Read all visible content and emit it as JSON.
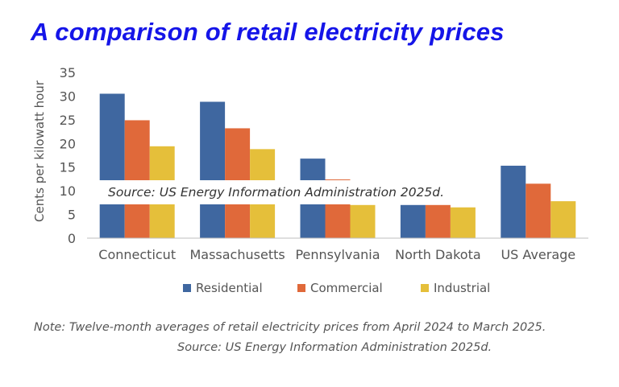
{
  "title": "A comparison of retail electricity prices",
  "note": "Note: Twelve-month averages of retail electricity prices from April 2024 to March 2025.",
  "footer_source": "Source: US Energy Information Administration 2025d.",
  "overlay_source": "Source: US Energy Information Administration 2025d.",
  "colors": {
    "title": "#1515e8",
    "residential": "#3f67a0",
    "commercial": "#e0693a",
    "industrial": "#e5bf3a",
    "axis": "#bfbfbf"
  },
  "chart_data": {
    "type": "bar",
    "title": "A comparison of retail electricity prices",
    "xlabel": "",
    "ylabel": "Cents per kilowatt hour",
    "ylim": [
      0,
      35
    ],
    "yticks": [
      0,
      5,
      10,
      15,
      20,
      25,
      30,
      35
    ],
    "grid": false,
    "legend_position": "bottom",
    "categories": [
      "Connecticut",
      "Massachusetts",
      "Pennsylvania",
      "North Dakota",
      "US Average"
    ],
    "series": [
      {
        "name": "Residential",
        "color": "#3f67a0",
        "values": [
          30.5,
          28.8,
          16.8,
          7.0,
          15.3
        ]
      },
      {
        "name": "Commercial",
        "color": "#e0693a",
        "values": [
          24.9,
          23.2,
          12.4,
          7.0,
          11.5
        ]
      },
      {
        "name": "Industrial",
        "color": "#e5bf3a",
        "values": [
          19.4,
          18.8,
          7.0,
          6.5,
          7.8
        ]
      }
    ]
  }
}
